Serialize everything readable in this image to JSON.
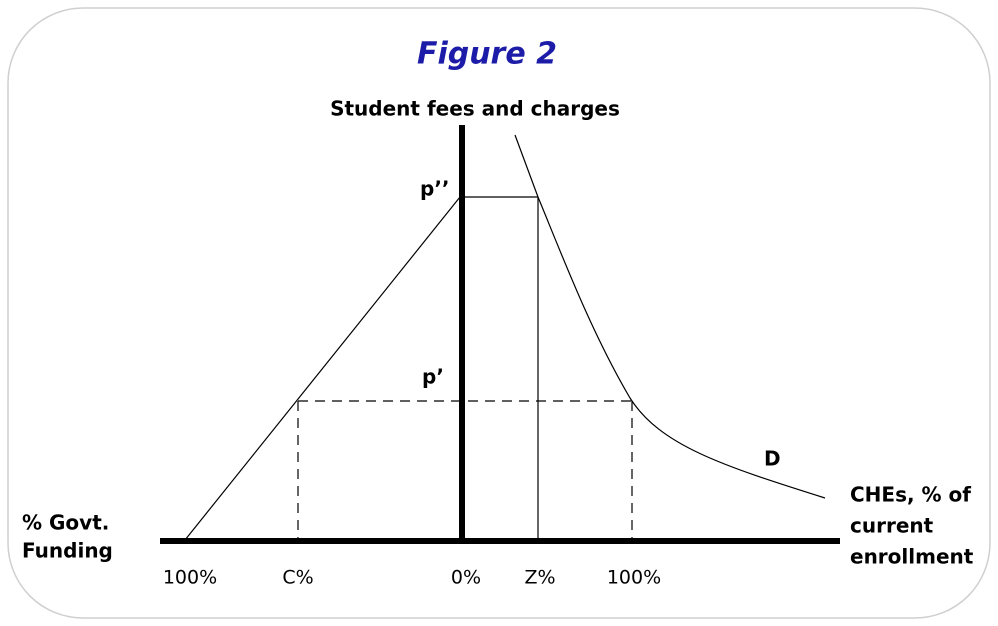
{
  "figure": {
    "title": "Figure 2",
    "y_axis_label": "Student fees and charges",
    "left_axis_label": [
      "% Govt.",
      "Funding"
    ],
    "right_axis_label": [
      "CHEs, % of",
      "current",
      "enrollment"
    ],
    "x_labels": [
      "100%",
      "C%",
      "0%",
      "Z%",
      "100%"
    ],
    "price_labels": [
      "p’’",
      "p’"
    ],
    "curve_label": "D"
  }
}
